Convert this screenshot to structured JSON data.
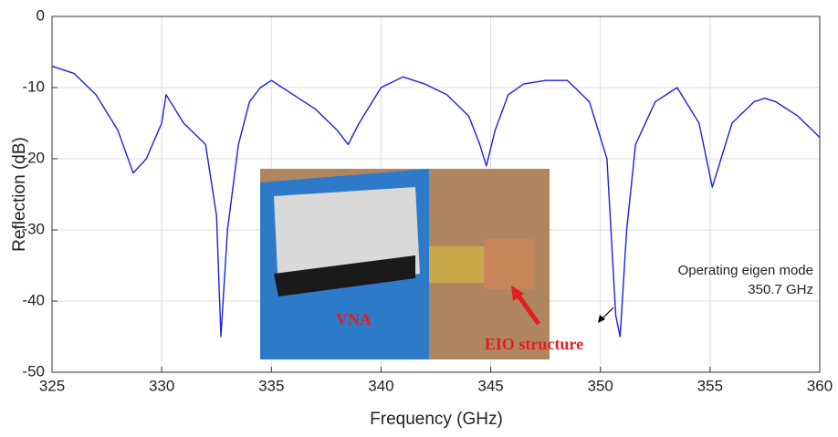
{
  "chart_data": {
    "type": "line",
    "xlabel": "Frequency (GHz)",
    "ylabel": "Reflection (dB)",
    "x": [
      325,
      326,
      327,
      328,
      328.7,
      329.3,
      330,
      330.2,
      331,
      332,
      332.5,
      332.7,
      333,
      333.5,
      334,
      334.5,
      335,
      335.5,
      336,
      337,
      338,
      338.5,
      339,
      340,
      341,
      342,
      343,
      344,
      344.5,
      344.8,
      345.2,
      345.8,
      346.5,
      347.5,
      348.5,
      349.5,
      350.3,
      350.7,
      350.9,
      351.2,
      351.6,
      352.5,
      353.5,
      354.5,
      355.1,
      355.5,
      356,
      357,
      357.5,
      358,
      359,
      360
    ],
    "values": [
      -7,
      -8,
      -11,
      -16,
      -22,
      -20,
      -15,
      -11,
      -15,
      -18,
      -28,
      -45,
      -30,
      -18,
      -12,
      -10,
      -9,
      -10,
      -11,
      -13,
      -16,
      -18,
      -15,
      -10,
      -8.5,
      -9.5,
      -11,
      -14,
      -18,
      -21,
      -16,
      -11,
      -9.5,
      -9,
      -9,
      -12,
      -20,
      -42,
      -45,
      -30,
      -18,
      -12,
      -10,
      -15,
      -24,
      -20,
      -15,
      -12,
      -11.5,
      -12,
      -14,
      -17
    ],
    "color": "#1f1fe0",
    "xlim": [
      325,
      360
    ],
    "ylim": [
      -50,
      0
    ],
    "xticks": [
      325,
      330,
      335,
      340,
      345,
      350,
      355,
      360
    ],
    "yticks": [
      -50,
      -40,
      -30,
      -20,
      -10,
      0
    ],
    "grid": true,
    "annotations": [
      "VNA",
      "EIO structure",
      "Operating eigen mode",
      "350.7 GHz"
    ]
  }
}
